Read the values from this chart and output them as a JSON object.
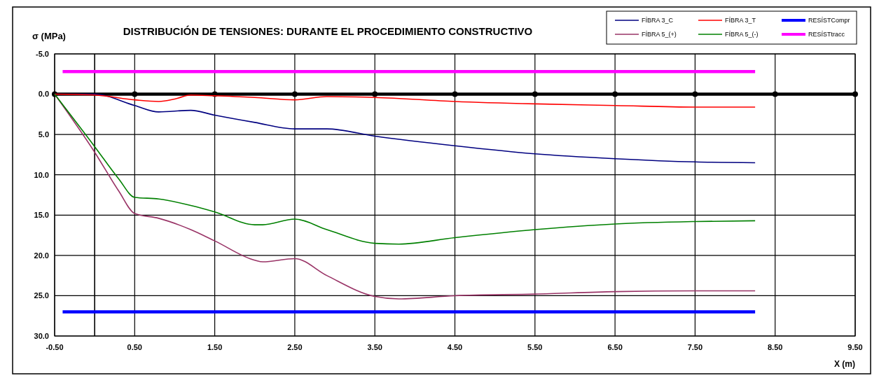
{
  "chart_data": {
    "type": "line",
    "title": "DISTRIBUCIÓN DE TENSIONES:  DURANTE EL  PROCEDIMIENTO CONSTRUCTIVO",
    "xlabel": "X (m)",
    "ylabel": "σ (MPa)",
    "xlim": [
      -0.5,
      9.5
    ],
    "xticks": [
      {
        "value": -0.5,
        "label": "-0.50"
      },
      {
        "value": 0.5,
        "label": "0.50"
      },
      {
        "value": 1.5,
        "label": "1.50"
      },
      {
        "value": 2.5,
        "label": "2.50"
      },
      {
        "value": 3.5,
        "label": "3.50"
      },
      {
        "value": 4.5,
        "label": "4.50"
      },
      {
        "value": 5.5,
        "label": "5.50"
      },
      {
        "value": 6.5,
        "label": "6.50"
      },
      {
        "value": 7.5,
        "label": "7.50"
      },
      {
        "value": 8.5,
        "label": "8.50"
      },
      {
        "value": 9.5,
        "label": "9.50"
      }
    ],
    "ylim": [
      30,
      -5
    ],
    "yticks": [
      {
        "value": -5,
        "label": "-5.0"
      },
      {
        "value": 0,
        "label": "0.0"
      },
      {
        "value": 5,
        "label": "5.0"
      },
      {
        "value": 10,
        "label": "10.0"
      },
      {
        "value": 15,
        "label": "15.0"
      },
      {
        "value": 20,
        "label": "20.0"
      },
      {
        "value": 25,
        "label": "25.0"
      },
      {
        "value": 30,
        "label": "30.0"
      }
    ],
    "grid": true,
    "legend": "top right",
    "ref_lines": [
      {
        "axis": "x",
        "value": 0,
        "color": "#000000"
      }
    ],
    "series": [
      {
        "color": "#000000",
        "marker": "circle",
        "x": [
          -0.5,
          0.5,
          1.5,
          2.5,
          3.5,
          4.5,
          5.5,
          6.5,
          7.5,
          8.5,
          9.5
        ],
        "values": [
          0,
          0,
          0,
          0,
          0,
          0,
          0,
          0,
          0,
          0,
          0
        ]
      },
      {
        "name": "FÍBRA 3_C",
        "color": "#000080",
        "x": [
          -0.5,
          0,
          0.5,
          0.8,
          1.2,
          1.5,
          2,
          2.5,
          2.9,
          3.5,
          4.5,
          5.5,
          6.5,
          7.5,
          8.25
        ],
        "values": [
          0,
          0,
          1.4,
          2.2,
          2,
          2.6,
          3.5,
          4.3,
          4.3,
          5.2,
          6.4,
          7.4,
          8,
          8.4,
          8.5
        ]
      },
      {
        "name": "FÍBRA 3_T",
        "color": "#ff0000",
        "x": [
          -0.5,
          0,
          0.5,
          0.8,
          1,
          1.2,
          1.5,
          2,
          2.5,
          2.9,
          3.5,
          4.5,
          5.5,
          6.5,
          7.5,
          8.25
        ],
        "values": [
          0,
          0.1,
          0.7,
          0.9,
          0.6,
          0.1,
          0.2,
          0.4,
          0.7,
          0.3,
          0.4,
          0.9,
          1.2,
          1.4,
          1.6,
          1.6
        ]
      },
      {
        "name": "RESÍSTCompr",
        "color": "#0000ff",
        "x": [
          -0.4,
          8.25
        ],
        "values": [
          27,
          27
        ]
      },
      {
        "name": "FÍBRA 5_(+)",
        "color": "#993366",
        "x": [
          -0.5,
          0,
          0.3,
          0.5,
          0.8,
          1.2,
          1.5,
          2,
          2.1,
          2.5,
          2.9,
          3.5,
          3.8,
          4.5,
          5.5,
          6.5,
          7.5,
          8.25
        ],
        "values": [
          0,
          7.2,
          12,
          14.8,
          15.4,
          16.8,
          18.2,
          20.6,
          20.8,
          20.4,
          22.5,
          25.1,
          25.4,
          25,
          24.8,
          24.5,
          24.4,
          24.4
        ]
      },
      {
        "name": "FÍBRA 5_(-)",
        "color": "#008000",
        "x": [
          -0.5,
          0,
          0.3,
          0.5,
          0.8,
          1.2,
          1.5,
          2,
          2.1,
          2.5,
          2.9,
          3.5,
          3.8,
          4.5,
          5.5,
          6.5,
          7.5,
          8.25
        ],
        "values": [
          0,
          6.5,
          10.5,
          12.8,
          13,
          13.8,
          14.6,
          16.2,
          16.2,
          15.5,
          16.8,
          18.5,
          18.6,
          17.8,
          16.8,
          16.1,
          15.8,
          15.7
        ]
      },
      {
        "name": "RESÍSTtracc",
        "color": "#ff00ff",
        "x": [
          -0.4,
          8.25
        ],
        "values": [
          -2.8,
          -2.8
        ]
      }
    ]
  }
}
